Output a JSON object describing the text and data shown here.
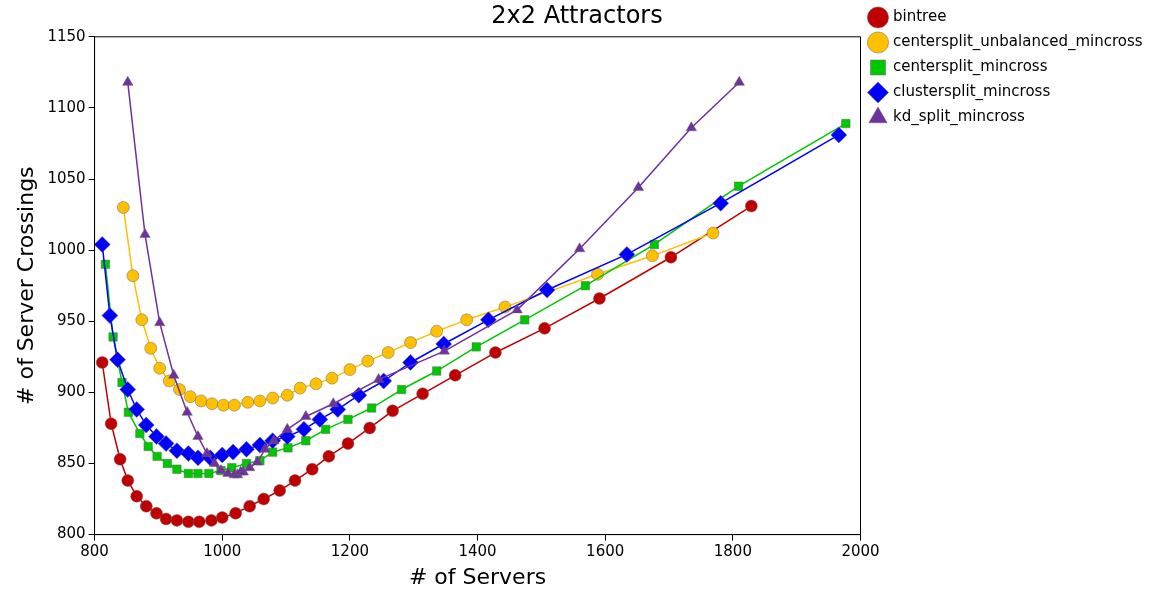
{
  "chart_data": {
    "type": "line",
    "title": "2x2 Attractors",
    "xlabel": "# of Servers",
    "ylabel": "# of Server Crossings",
    "xlim": [
      800,
      2000
    ],
    "xticks": [
      800,
      1000,
      1200,
      1400,
      1600,
      1800,
      2000
    ],
    "ylim": [
      800,
      1150
    ],
    "yticks": [
      800,
      850,
      900,
      950,
      1000,
      1050,
      1100,
      1150
    ],
    "grid": false,
    "legend": "top right",
    "series": [
      {
        "name": "bintree",
        "color": "#c00000",
        "marker": "circle",
        "x": [
          812,
          826,
          840,
          852,
          866,
          881,
          897,
          912,
          929,
          947,
          964,
          983,
          1000,
          1021,
          1043,
          1065,
          1090,
          1114,
          1141,
          1167,
          1197,
          1231,
          1267,
          1314,
          1365,
          1428,
          1505,
          1591,
          1703,
          1829
        ],
        "values": [
          921,
          878,
          853,
          838,
          827,
          820,
          815,
          811,
          810,
          809,
          809,
          810,
          812,
          815,
          820,
          825,
          831,
          838,
          846,
          855,
          864,
          875,
          887,
          899,
          912,
          928,
          945,
          966,
          995,
          1031
        ]
      },
      {
        "name": "centersplit_unbalanced_mincross",
        "color": "#ffc000",
        "marker": "circle",
        "x": [
          845,
          860,
          874,
          888,
          902,
          917,
          933,
          950,
          967,
          984,
          1002,
          1019,
          1040,
          1059,
          1079,
          1102,
          1122,
          1147,
          1172,
          1200,
          1228,
          1260,
          1295,
          1336,
          1383,
          1443,
          1588,
          1674,
          1769
        ],
        "values": [
          1030,
          982,
          951,
          931,
          917,
          908,
          902,
          897,
          894,
          892,
          891,
          891,
          893,
          894,
          896,
          898,
          903,
          906,
          910,
          916,
          922,
          928,
          935,
          943,
          951,
          960,
          983,
          996,
          1012
        ]
      },
      {
        "name": "centersplit_mincross",
        "color": "#00c800",
        "marker": "square",
        "x": [
          817,
          829,
          843,
          853,
          871,
          884,
          898,
          914,
          929,
          947,
          962,
          979,
          998,
          1015,
          1038,
          1059,
          1079,
          1103,
          1131,
          1162,
          1197,
          1234,
          1281,
          1336,
          1398,
          1474,
          1569,
          1677,
          1809,
          1977
        ],
        "values": [
          990,
          939,
          907,
          886,
          871,
          862,
          855,
          850,
          846,
          843,
          843,
          843,
          845,
          847,
          850,
          852,
          858,
          861,
          866,
          874,
          881,
          889,
          902,
          915,
          932,
          951,
          975,
          1004,
          1045,
          1089
        ]
      },
      {
        "name": "clustersplit_mincross",
        "color": "#0000ff",
        "marker": "diamond",
        "x": [
          812,
          824,
          836,
          852,
          866,
          881,
          897,
          912,
          929,
          947,
          962,
          981,
          1000,
          1017,
          1038,
          1059,
          1079,
          1102,
          1128,
          1153,
          1181,
          1214,
          1253,
          1295,
          1347,
          1417,
          1509,
          1634,
          1781,
          1966
        ],
        "values": [
          1004,
          954,
          923,
          902,
          888,
          877,
          869,
          864,
          859,
          857,
          854,
          854,
          856,
          858,
          860,
          863,
          866,
          869,
          874,
          881,
          888,
          898,
          908,
          921,
          934,
          951,
          972,
          997,
          1033,
          1081
        ]
      },
      {
        "name": "kd_split_mincross",
        "color": "#7030a0",
        "marker": "triangle",
        "x": [
          852,
          879,
          902,
          924,
          945,
          962,
          976,
          988,
          998,
          1009,
          1019,
          1024,
          1029,
          1033,
          1043,
          1055,
          1067,
          1081,
          1102,
          1131,
          1174,
          1245,
          1348,
          1462,
          1560,
          1652,
          1735,
          1810
        ],
        "values": [
          1118,
          1011,
          949,
          912,
          886,
          869,
          857,
          850,
          845,
          843,
          842,
          842,
          844,
          844,
          847,
          851,
          860,
          866,
          874,
          883,
          892,
          909,
          929,
          958,
          1001,
          1044,
          1086,
          1118
        ]
      }
    ]
  }
}
